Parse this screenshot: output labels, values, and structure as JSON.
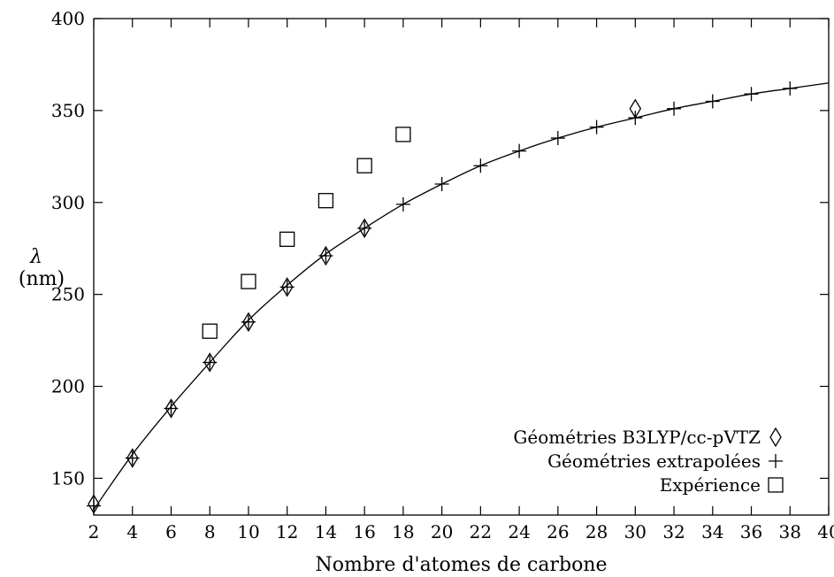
{
  "chart_data": {
    "type": "scatter",
    "xlabel": "Nombre d'atomes de carbone",
    "ylabel": "λ",
    "ylabel_unit": "(nm)",
    "xlim": [
      2,
      40
    ],
    "ylim": [
      130,
      400
    ],
    "x_ticks": [
      2,
      4,
      6,
      8,
      10,
      12,
      14,
      16,
      18,
      20,
      22,
      24,
      26,
      28,
      30,
      32,
      34,
      36,
      38,
      40
    ],
    "y_ticks": [
      150,
      200,
      250,
      300,
      350,
      400
    ],
    "grid": false,
    "legend_position": "bottom-right",
    "series": [
      {
        "name": "Géométries B3LYP/cc-pVTZ",
        "marker": "diamond",
        "x": [
          2,
          4,
          6,
          8,
          10,
          12,
          14,
          16,
          30
        ],
        "y": [
          136,
          161,
          188,
          213,
          235,
          254,
          271,
          286,
          351
        ]
      },
      {
        "name": "Géométries extrapolées",
        "marker": "plus",
        "x": [
          2,
          4,
          6,
          8,
          10,
          12,
          14,
          16,
          18,
          20,
          22,
          24,
          26,
          28,
          30,
          32,
          34,
          36,
          38
        ],
        "y": [
          135,
          161,
          188,
          213,
          235,
          254,
          271,
          286,
          299,
          310,
          320,
          328,
          335,
          341,
          346,
          351,
          355,
          359,
          362
        ]
      },
      {
        "name": "Expérience",
        "marker": "square",
        "x": [
          8,
          10,
          12,
          14,
          16,
          18
        ],
        "y": [
          230,
          257,
          280,
          301,
          320,
          337
        ]
      }
    ],
    "fit_curve": {
      "style": "line",
      "x": [
        2,
        4,
        6,
        8,
        10,
        12,
        14,
        16,
        18,
        20,
        22,
        24,
        26,
        28,
        30,
        32,
        34,
        36,
        38,
        40
      ],
      "y": [
        133,
        163,
        189,
        213,
        236,
        255,
        272,
        286,
        299,
        310,
        320,
        328,
        335,
        341,
        346,
        351,
        355,
        359,
        362,
        365
      ]
    }
  }
}
